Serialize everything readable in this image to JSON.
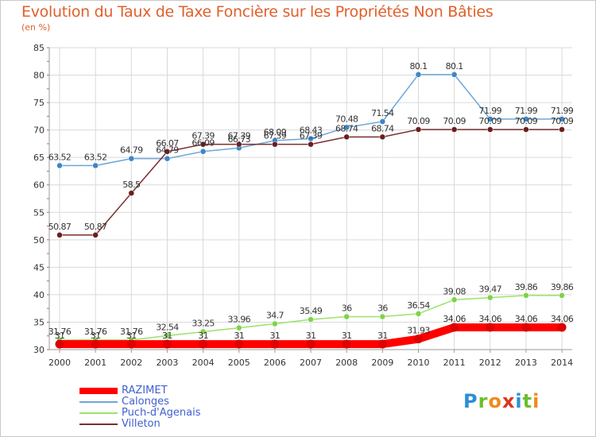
{
  "title": "Evolution du Taux de Taxe Foncière sur les Propriétés Non Bâties",
  "subtitle": "(en %)",
  "logo": {
    "text": "Proxiti",
    "colors": [
      "#2a8fd6",
      "#6cbf2c",
      "#f08a1c",
      "#e0311f",
      "#2a8fd6",
      "#6cbf2c",
      "#f08a1c"
    ]
  },
  "chart_data": {
    "type": "line",
    "x": [
      "2000",
      "2001",
      "2002",
      "2003",
      "2004",
      "2005",
      "2006",
      "2007",
      "2008",
      "2009",
      "2010",
      "2011",
      "2012",
      "2013",
      "2014"
    ],
    "ylim": [
      30,
      85
    ],
    "yticks": [
      30,
      35,
      40,
      45,
      50,
      55,
      60,
      65,
      70,
      75,
      80,
      85
    ],
    "grid": true,
    "legend_position": "bottom-left",
    "series": [
      {
        "name": "RAZIMET",
        "color": "#ff0000",
        "bold": true,
        "values": [
          31,
          31,
          31,
          31,
          31,
          31,
          31,
          31,
          31,
          31,
          31.93,
          34.06,
          34.06,
          34.06,
          34.06
        ],
        "labels": [
          "31",
          "31",
          "31",
          "31",
          "31",
          "31",
          "31",
          "31",
          "31",
          "31",
          "31.93",
          "34.06",
          "34.06",
          "34.06",
          "34.06"
        ]
      },
      {
        "name": "Calonges",
        "color": "#6ea6d8",
        "marker": "#3d86c6",
        "values": [
          63.52,
          63.52,
          64.79,
          64.79,
          66.09,
          66.73,
          68.09,
          68.43,
          70.48,
          71.54,
          80.1,
          80.1,
          71.99,
          71.99,
          71.99
        ],
        "labels": [
          "63.52",
          "63.52",
          "64.79",
          "64.79",
          "66.09",
          "66.73",
          "68.09",
          "68.43",
          "70.48",
          "71.54",
          "80.1",
          "80.1",
          "71.99",
          "71.99",
          "71.99"
        ]
      },
      {
        "name": "Puch-d'Agenais",
        "color": "#9be26a",
        "marker": "#7fd34a",
        "values": [
          31.76,
          31.76,
          31.76,
          32.54,
          33.25,
          33.96,
          34.7,
          35.49,
          36,
          36,
          36.54,
          39.08,
          39.47,
          39.86,
          39.86
        ],
        "labels": [
          "31.76",
          "31.76",
          "31.76",
          "32.54",
          "33.25",
          "33.96",
          "34.7",
          "35.49",
          "36",
          "36",
          "36.54",
          "39.08",
          "39.47",
          "39.86",
          "39.86"
        ]
      },
      {
        "name": "Villeton",
        "color": "#7a2f2f",
        "marker": "#6b1e1e",
        "values": [
          50.87,
          50.87,
          58.5,
          66.07,
          67.39,
          67.39,
          67.39,
          67.39,
          68.74,
          68.74,
          70.09,
          70.09,
          70.09,
          70.09,
          70.09
        ],
        "labels": [
          "50.87",
          "50.87",
          "58.5",
          "66.07",
          "67.39",
          "67.39",
          "67.39",
          "67.39",
          "68.74",
          "68.74",
          "70.09",
          "70.09",
          "70.09",
          "70.09",
          "70.09"
        ]
      }
    ]
  }
}
